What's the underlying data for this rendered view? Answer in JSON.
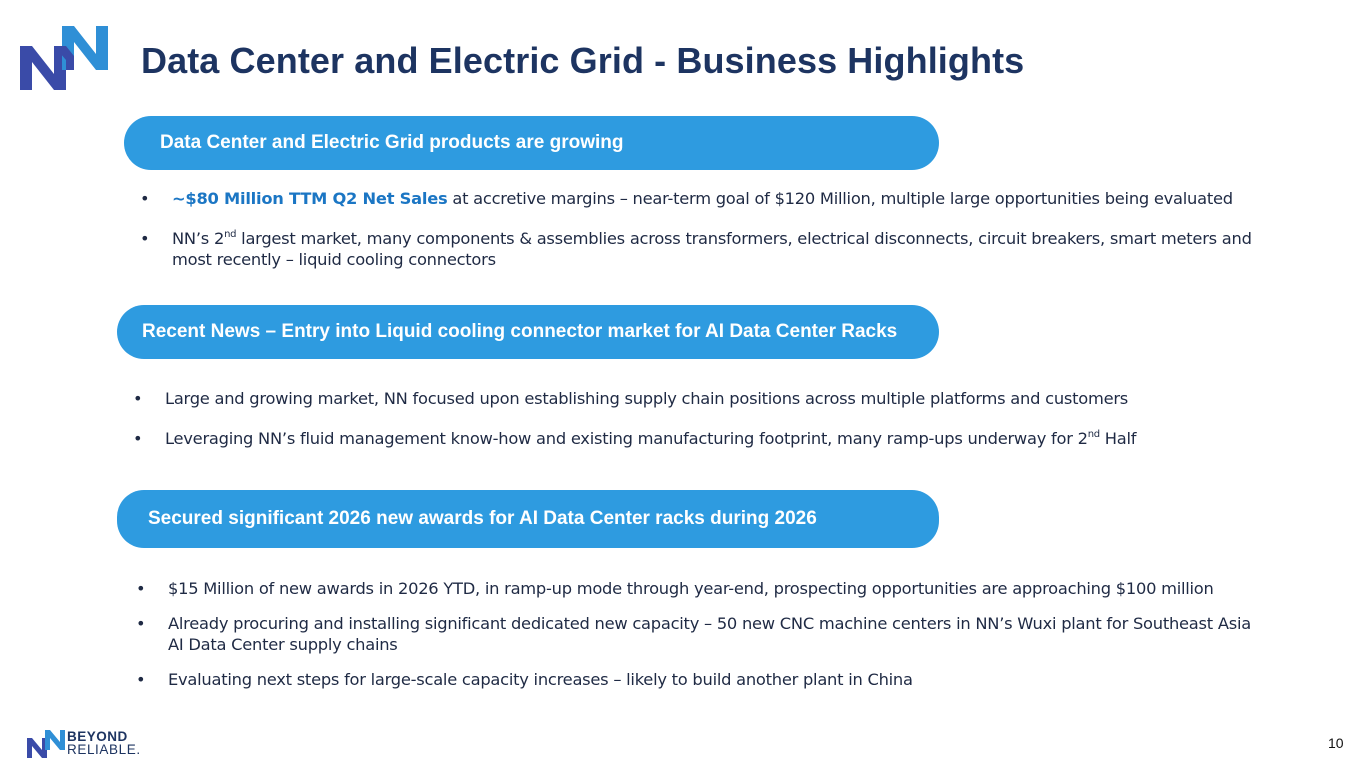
{
  "slide": {
    "title": "Data Center and Electric Grid - Business Highlights",
    "page_number": "10",
    "colors": {
      "brand_navy": "#1d3461",
      "pill_blue": "#2e9be0",
      "highlight_blue": "#1b76c4",
      "logo_light_blue": "#2f8fd6",
      "logo_dark_blue": "#3a4ba8"
    },
    "logo_icon": "nn-logo-icon"
  },
  "sections": [
    {
      "heading": "Data Center and Electric Grid products are growing",
      "bullets": [
        {
          "highlight": "~$80 Million TTM Q2 Net Sales",
          "text": " at accretive margins – near-term goal of $120 Million, multiple large opportunities being evaluated"
        },
        {
          "pre": "NN’s 2",
          "sup": "nd",
          "text": " largest market, many components & assemblies across transformers, electrical disconnects, circuit breakers, smart meters and most recently – liquid cooling connectors"
        }
      ]
    },
    {
      "heading": "Recent News – Entry into Liquid cooling connector market for AI Data Center Racks",
      "bullets": [
        {
          "text": "Large and growing market, NN focused upon establishing supply chain positions across multiple platforms and customers"
        },
        {
          "pre": "Leveraging NN’s fluid management know-how and existing manufacturing footprint, many ramp-ups underway for 2",
          "sup": "nd",
          "text": " Half"
        }
      ]
    },
    {
      "heading": "Secured significant 2026 new awards for AI Data Center racks during 2026",
      "bullets": [
        {
          "text": "$15 Million of new awards in 2026 YTD, in ramp-up mode through year-end, prospecting opportunities are approaching $100 million"
        },
        {
          "text": "Already procuring and installing significant dedicated new capacity – 50 new CNC machine centers in NN’s Wuxi plant for Southeast Asia AI Data Center supply chains"
        },
        {
          "text": "Evaluating next steps for large-scale capacity increases – likely to build another plant in China"
        }
      ]
    }
  ],
  "bullet_glyph": "•",
  "footer": {
    "brand_line1": "BEYOND",
    "brand_line2": "RELIABLE."
  }
}
